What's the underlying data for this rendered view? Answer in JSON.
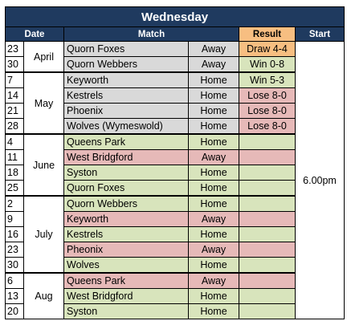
{
  "title": "Wednesday",
  "headers": {
    "date": "Date",
    "match": "Match",
    "result": "Result",
    "start": "Start"
  },
  "start_time": "6.00pm",
  "colors": {
    "header_bg": "#1f3a5f",
    "result_header": "#f7be81",
    "played": "#d9d9d9",
    "home": "#d8e4bc",
    "away": "#e6b9b8",
    "draw": "#f7be81"
  },
  "rows": [
    {
      "day": "23",
      "month": "April",
      "opponent": "Quorn Foxes",
      "venue": "Away",
      "result": "Draw 4-4"
    },
    {
      "day": "30",
      "month": "",
      "opponent": "Quorn Webbers",
      "venue": "Away",
      "result": "Win  0-8"
    },
    {
      "day": "7",
      "month": "May",
      "opponent": "Keyworth",
      "venue": "Home",
      "result": "Win 5-3"
    },
    {
      "day": "14",
      "month": "",
      "opponent": "Kestrels",
      "venue": "Home",
      "result": "Lose 8-0"
    },
    {
      "day": "21",
      "month": "",
      "opponent": "Phoenix",
      "venue": "Home",
      "result": "Lose 8-0"
    },
    {
      "day": "28",
      "month": "",
      "opponent": "Wolves (Wymeswold)",
      "venue": "Home",
      "result": "Lose 8-0"
    },
    {
      "day": "4",
      "month": "June",
      "opponent": "Queens Park",
      "venue": "Home",
      "result": ""
    },
    {
      "day": "11",
      "month": "",
      "opponent": "West Bridgford",
      "venue": "Away",
      "result": ""
    },
    {
      "day": "18",
      "month": "",
      "opponent": "Syston",
      "venue": "Home",
      "result": ""
    },
    {
      "day": "25",
      "month": "",
      "opponent": "Quorn Foxes",
      "venue": "Home",
      "result": ""
    },
    {
      "day": "2",
      "month": "July",
      "opponent": "Quorn Webbers",
      "venue": "Home",
      "result": ""
    },
    {
      "day": "9",
      "month": "",
      "opponent": "Keyworth",
      "venue": "Away",
      "result": ""
    },
    {
      "day": "16",
      "month": "",
      "opponent": "Kestrels",
      "venue": "Home",
      "result": ""
    },
    {
      "day": "23",
      "month": "",
      "opponent": "Pheonix",
      "venue": "Away",
      "result": ""
    },
    {
      "day": "30",
      "month": "",
      "opponent": "Wolves",
      "venue": "Home",
      "result": ""
    },
    {
      "day": "6",
      "month": "Aug",
      "opponent": "Queens Park",
      "venue": "Away",
      "result": ""
    },
    {
      "day": "13",
      "month": "",
      "opponent": "West Bridgford",
      "venue": "Home",
      "result": ""
    },
    {
      "day": "20",
      "month": "",
      "opponent": "Syston",
      "venue": "Home",
      "result": ""
    }
  ]
}
